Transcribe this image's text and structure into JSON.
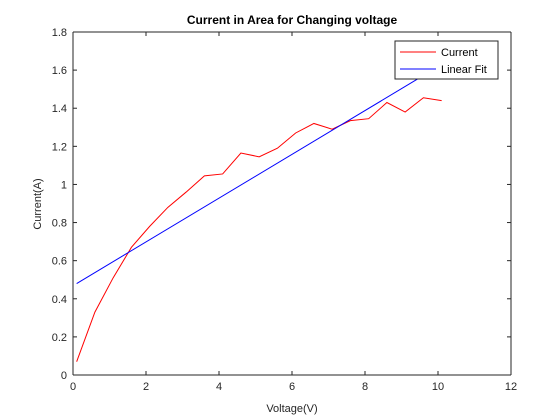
{
  "chart_data": {
    "type": "line",
    "title": "Current in Area for Changing voltage",
    "xlabel": "Voltage(V)",
    "ylabel": "Current(A)",
    "xlim": [
      0,
      12
    ],
    "ylim": [
      0,
      1.8
    ],
    "xticks": [
      0,
      2,
      4,
      6,
      8,
      10,
      12
    ],
    "yticks": [
      0,
      0.2,
      0.4,
      0.6,
      0.8,
      1,
      1.2,
      1.4,
      1.6,
      1.8
    ],
    "grid": false,
    "legend_position": "top-right",
    "series": [
      {
        "name": "Current",
        "color": "#ff0000",
        "x": [
          0.1,
          0.6,
          1.1,
          1.6,
          2.1,
          2.6,
          3.1,
          3.6,
          4.1,
          4.6,
          5.1,
          5.6,
          6.1,
          6.6,
          7.1,
          7.6,
          8.1,
          8.6,
          9.1,
          9.6,
          10.1
        ],
        "y": [
          0.07,
          0.33,
          0.51,
          0.67,
          0.78,
          0.88,
          0.96,
          1.045,
          1.055,
          1.165,
          1.145,
          1.19,
          1.27,
          1.32,
          1.29,
          1.335,
          1.345,
          1.43,
          1.38,
          1.455,
          1.44
        ]
      },
      {
        "name": "Linear Fit",
        "color": "#0000ff",
        "x": [
          0.1,
          9.5
        ],
        "y": [
          0.48,
          1.56
        ]
      }
    ]
  }
}
